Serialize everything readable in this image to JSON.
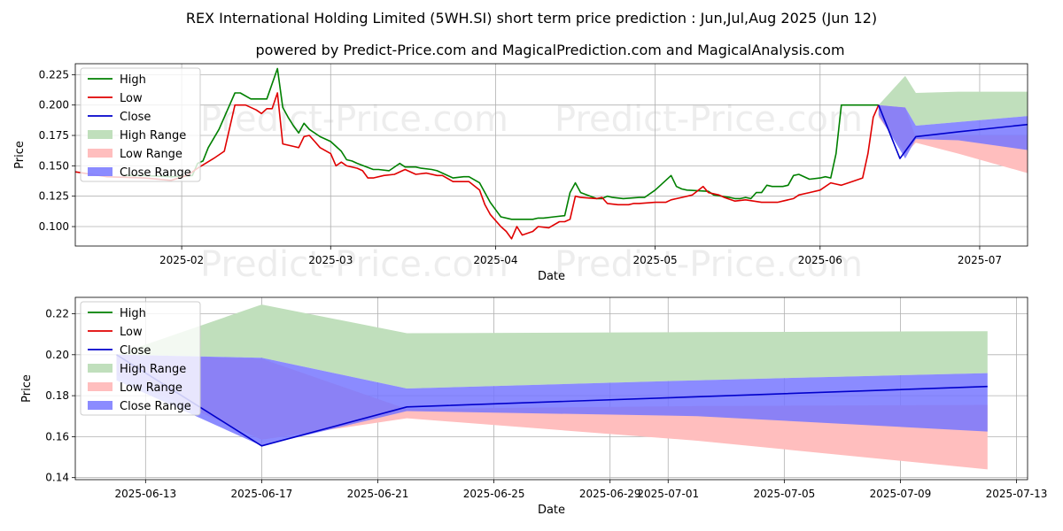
{
  "title": "REX International Holding Limited (5WH.SI) short term price prediction : Jun,Jul,Aug 2025 (Jun 12)",
  "subtitle": "powered by Predict-Price.com and MagicalPrediction.com and MagicalAnalysis.com",
  "watermark": "Predict-Price.com",
  "colors": {
    "high": "#008000",
    "low": "#e00000",
    "close": "#0000cc",
    "high_range": "#c0dfbc",
    "low_range": "#ffbebe",
    "close_range": "#7777ff"
  },
  "legend": [
    "High",
    "Low",
    "Close",
    "High Range",
    "Low Range",
    "Close Range"
  ],
  "chart_data": [
    {
      "type": "line",
      "name": "top-chart",
      "xlabel": "Date",
      "ylabel": "Price",
      "x_unit": "day of 2025",
      "xlim": [
        12,
        191
      ],
      "ylim": [
        0.084,
        0.234
      ],
      "grid": true,
      "legend_loc": "top-left",
      "x_ticks": [
        {
          "x": 32,
          "label": "2025-02"
        },
        {
          "x": 60,
          "label": "2025-03"
        },
        {
          "x": 91,
          "label": "2025-04"
        },
        {
          "x": 121,
          "label": "2025-05"
        },
        {
          "x": 152,
          "label": "2025-06"
        },
        {
          "x": 182,
          "label": "2025-07"
        }
      ],
      "y_ticks": [
        0.1,
        0.125,
        0.15,
        0.175,
        0.2,
        0.225
      ],
      "y_tick_labels": [
        "0.100",
        "0.125",
        "0.150",
        "0.175",
        "0.200",
        "0.225"
      ],
      "series": [
        {
          "name": "High",
          "x": [
            21,
            25,
            30,
            34,
            35,
            36,
            37,
            39,
            42,
            43,
            45,
            48,
            50,
            51,
            52,
            53,
            54,
            55,
            56,
            58,
            59,
            60,
            62,
            63,
            64,
            65,
            68,
            69,
            71,
            73,
            74,
            76,
            77,
            79,
            80,
            83,
            85,
            86,
            88,
            90,
            91,
            92,
            94,
            97,
            98,
            99,
            100,
            102,
            104,
            105,
            106,
            107,
            110,
            111,
            112,
            113,
            115,
            118,
            119,
            121,
            124,
            125,
            126,
            127,
            131,
            132,
            135,
            136,
            137,
            138,
            139,
            140,
            141,
            142,
            143,
            144,
            145,
            146,
            147,
            148,
            150,
            152,
            153,
            154,
            155,
            156,
            158,
            159,
            160,
            161,
            162,
            163
          ],
          "values": [
            0.142,
            0.142,
            0.141,
            0.142,
            0.152,
            0.154,
            0.165,
            0.18,
            0.21,
            0.21,
            0.205,
            0.205,
            0.23,
            0.198,
            0.19,
            0.183,
            0.177,
            0.185,
            0.18,
            0.174,
            0.172,
            0.17,
            0.162,
            0.155,
            0.154,
            0.152,
            0.147,
            0.147,
            0.146,
            0.152,
            0.149,
            0.149,
            0.148,
            0.147,
            0.146,
            0.14,
            0.141,
            0.141,
            0.136,
            0.12,
            0.114,
            0.108,
            0.106,
            0.106,
            0.106,
            0.107,
            0.107,
            0.108,
            0.109,
            0.128,
            0.136,
            0.128,
            0.123,
            0.123,
            0.125,
            0.124,
            0.123,
            0.124,
            0.124,
            0.13,
            0.142,
            0.133,
            0.131,
            0.13,
            0.129,
            0.126,
            0.124,
            0.123,
            0.123,
            0.124,
            0.123,
            0.128,
            0.128,
            0.134,
            0.133,
            0.133,
            0.133,
            0.134,
            0.142,
            0.143,
            0.139,
            0.14,
            0.141,
            0.14,
            0.16,
            0.2,
            0.2,
            0.2,
            0.2,
            0.2,
            0.2,
            0.2
          ]
        },
        {
          "name": "Low",
          "x": [
            12,
            18,
            25,
            30,
            33,
            35,
            38,
            40,
            42,
            44,
            46,
            47,
            48,
            49,
            50,
            51,
            53,
            54,
            55,
            56,
            57,
            58,
            60,
            61,
            62,
            63,
            65,
            66,
            67,
            68,
            70,
            72,
            74,
            76,
            78,
            80,
            81,
            83,
            85,
            86,
            88,
            89,
            90,
            92,
            93,
            94,
            95,
            96,
            98,
            99,
            101,
            103,
            104,
            105,
            106,
            107,
            110,
            111,
            112,
            114,
            115,
            116,
            117,
            118,
            121,
            123,
            124,
            126,
            128,
            130,
            131,
            133,
            134,
            136,
            138,
            141,
            143,
            144,
            145,
            147,
            148,
            150,
            152,
            154,
            155,
            156,
            158,
            160,
            161,
            162,
            163
          ],
          "values": [
            0.145,
            0.141,
            0.14,
            0.138,
            0.142,
            0.148,
            0.156,
            0.162,
            0.2,
            0.2,
            0.196,
            0.193,
            0.197,
            0.197,
            0.21,
            0.168,
            0.166,
            0.165,
            0.174,
            0.175,
            0.17,
            0.165,
            0.16,
            0.15,
            0.153,
            0.15,
            0.148,
            0.146,
            0.14,
            0.14,
            0.142,
            0.143,
            0.147,
            0.143,
            0.144,
            0.142,
            0.142,
            0.137,
            0.137,
            0.137,
            0.13,
            0.118,
            0.11,
            0.1,
            0.096,
            0.09,
            0.1,
            0.093,
            0.096,
            0.1,
            0.099,
            0.104,
            0.104,
            0.106,
            0.125,
            0.124,
            0.123,
            0.124,
            0.119,
            0.118,
            0.118,
            0.118,
            0.119,
            0.119,
            0.12,
            0.12,
            0.122,
            0.124,
            0.126,
            0.133,
            0.128,
            0.126,
            0.124,
            0.121,
            0.122,
            0.12,
            0.12,
            0.12,
            0.121,
            0.123,
            0.126,
            0.128,
            0.13,
            0.136,
            0.135,
            0.134,
            0.137,
            0.14,
            0.16,
            0.19,
            0.2
          ]
        },
        {
          "name": "Close",
          "x": [
            163,
            167,
            170,
            178,
            191
          ],
          "values": [
            0.2,
            0.156,
            0.174,
            0.178,
            0.184
          ]
        }
      ],
      "ranges": [
        {
          "name": "High Range",
          "x": [
            163,
            168,
            170,
            178,
            191
          ],
          "upper": [
            0.2,
            0.224,
            0.21,
            0.211,
            0.211
          ],
          "lower": [
            0.2,
            0.198,
            0.183,
            0.186,
            0.191
          ]
        },
        {
          "name": "Low Range",
          "x": [
            163,
            168,
            170,
            178,
            191
          ],
          "upper": [
            0.2,
            0.198,
            0.173,
            0.175,
            0.175
          ],
          "lower": [
            0.19,
            0.16,
            0.169,
            0.16,
            0.144
          ]
        },
        {
          "name": "Close Range",
          "x": [
            163,
            168,
            170,
            178,
            191
          ],
          "upper": [
            0.2,
            0.198,
            0.183,
            0.186,
            0.191
          ],
          "lower": [
            0.192,
            0.156,
            0.172,
            0.171,
            0.163
          ]
        }
      ]
    },
    {
      "type": "line",
      "name": "bottom-chart",
      "xlabel": "Date",
      "ylabel": "Price",
      "x_unit": "days after 2025-06-12",
      "xlim": [
        -1.42,
        31.38
      ],
      "ylim": [
        0.139,
        0.228
      ],
      "grid": true,
      "legend_loc": "top-left",
      "x_ticks": [
        {
          "x": 1,
          "label": "2025-06-13"
        },
        {
          "x": 5,
          "label": "2025-06-17"
        },
        {
          "x": 9,
          "label": "2025-06-21"
        },
        {
          "x": 13,
          "label": "2025-06-25"
        },
        {
          "x": 17,
          "label": "2025-06-29"
        },
        {
          "x": 19,
          "label": "2025-07-01"
        },
        {
          "x": 23,
          "label": "2025-07-05"
        },
        {
          "x": 27,
          "label": "2025-07-09"
        },
        {
          "x": 31,
          "label": "2025-07-13"
        }
      ],
      "y_ticks": [
        0.14,
        0.16,
        0.18,
        0.2,
        0.22
      ],
      "y_tick_labels": [
        "0.14",
        "0.16",
        "0.18",
        "0.20",
        "0.22"
      ],
      "series": [
        {
          "name": "Close",
          "x": [
            0,
            5,
            10,
            20,
            30
          ],
          "values": [
            0.2,
            0.1555,
            0.1745,
            0.1795,
            0.1845
          ]
        }
      ],
      "ranges": [
        {
          "name": "High Range",
          "x": [
            0,
            5,
            10,
            20,
            30
          ],
          "upper": [
            0.2,
            0.2245,
            0.2105,
            0.211,
            0.2115
          ],
          "lower": [
            0.2,
            0.1985,
            0.1835,
            0.1875,
            0.191
          ]
        },
        {
          "name": "Low Range",
          "x": [
            0,
            5,
            10,
            20,
            30
          ],
          "upper": [
            0.2,
            0.198,
            0.1735,
            0.175,
            0.1755
          ],
          "lower": [
            0.19,
            0.1585,
            0.169,
            0.158,
            0.144
          ]
        },
        {
          "name": "Close Range",
          "x": [
            0,
            5,
            10,
            20,
            30
          ],
          "upper": [
            0.2,
            0.1985,
            0.1835,
            0.1875,
            0.191
          ],
          "lower": [
            0.1875,
            0.1555,
            0.1725,
            0.17,
            0.1625
          ]
        }
      ]
    }
  ]
}
